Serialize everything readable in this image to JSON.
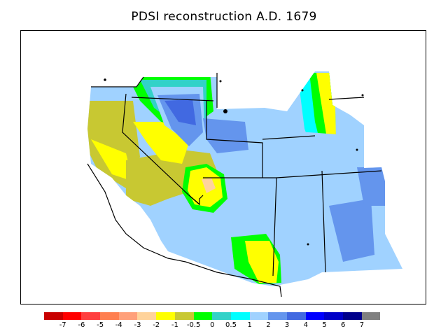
{
  "title": "PDSI reconstruction A.D. 1679",
  "colors": {
    "le_-7": "#c80000",
    "-7_-6": "#ff0000",
    "-6_-5": "#ff3f3f",
    "-5_-4": "#ff7f50",
    "-4_-3": "#ffa07a",
    "-3_-2": "#ffd39b",
    "-2_-1": "#ffff00",
    "-1_-0.5": "#c8c832",
    "-0.5_0": "#00ff00",
    "0_0.5": "#32d2c8",
    "0.5_1": "#00ffff",
    "1_2": "#a0d2ff",
    "2_3": "#6495ed",
    "3_4": "#4169e1",
    "4_5": "#0000ff",
    "5_6": "#0000c8",
    "6_7": "#00008b",
    "ge_7": "#808080",
    "land_boundary": "#000000",
    "background": "#ffffff"
  },
  "colorbar": {
    "swatches": [
      "#c80000",
      "#ff0000",
      "#ff3f3f",
      "#ff7f50",
      "#ffa07a",
      "#ffd39b",
      "#ffff00",
      "#c8c832",
      "#00ff00",
      "#32d2c8",
      "#00ffff",
      "#a0d2ff",
      "#6495ed",
      "#4169e1",
      "#0000ff",
      "#0000c8",
      "#00008b",
      "#808080"
    ],
    "labels": [
      "-7",
      "-6",
      "-5",
      "-4",
      "-3",
      "-2",
      "-1",
      "-0.5",
      "0",
      "0.5",
      "1",
      "2",
      "3",
      "4",
      "5",
      "6",
      "7"
    ]
  }
}
